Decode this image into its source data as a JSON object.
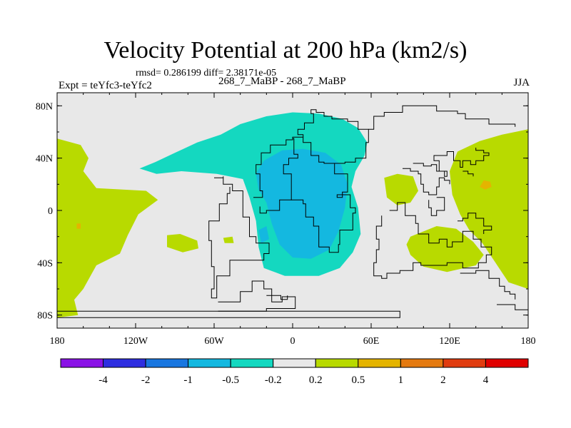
{
  "chart_data": {
    "type": "heatmap",
    "title": "Velocity Potential at 200 hPa (km2/s)",
    "stats": "rmsd= 0.286199 diff= 2.38171e-05",
    "experiment": "Expt = teYfc3-teYfc2",
    "runs": "268_7_MaBP - 268_7_MaBP",
    "season": "JJA",
    "xlim": [
      -180,
      180
    ],
    "ylim": [
      -90,
      90
    ],
    "x_ticks": [
      {
        "value": -180,
        "label": "180"
      },
      {
        "value": -120,
        "label": "120W"
      },
      {
        "value": -60,
        "label": "60W"
      },
      {
        "value": 0,
        "label": "0"
      },
      {
        "value": 60,
        "label": "60E"
      },
      {
        "value": 120,
        "label": "120E"
      },
      {
        "value": 180,
        "label": "180"
      }
    ],
    "y_ticks": [
      {
        "value": 80,
        "label": "80N"
      },
      {
        "value": 40,
        "label": "40N"
      },
      {
        "value": 0,
        "label": "0"
      },
      {
        "value": -40,
        "label": "40S"
      },
      {
        "value": -80,
        "label": "80S"
      }
    ],
    "colorbar": {
      "levels": [
        "-4",
        "-2",
        "-1",
        "-0.5",
        "-0.2",
        "0.2",
        "0.5",
        "1",
        "2",
        "4"
      ],
      "colors": [
        "#8a12e6",
        "#2e2ee0",
        "#1876e0",
        "#14b8e0",
        "#14d8c0",
        "#e8e8e8",
        "#b8da00",
        "#e4b400",
        "#e47a10",
        "#e03c10",
        "#e00000"
      ]
    },
    "regions": [
      {
        "label": "-0.2 to -0.5",
        "color": "#14d8c0",
        "polygon": [
          [
            -117,
            32
          ],
          [
            -105,
            37
          ],
          [
            -90,
            44
          ],
          [
            -73,
            52
          ],
          [
            -55,
            58
          ],
          [
            -40,
            66
          ],
          [
            -20,
            72
          ],
          [
            0,
            75
          ],
          [
            20,
            74
          ],
          [
            38,
            70
          ],
          [
            50,
            63
          ],
          [
            57,
            52
          ],
          [
            55,
            42
          ],
          [
            48,
            30
          ],
          [
            45,
            18
          ],
          [
            50,
            2
          ],
          [
            52,
            -18
          ],
          [
            46,
            -32
          ],
          [
            36,
            -44
          ],
          [
            20,
            -50
          ],
          [
            -6,
            -50
          ],
          [
            -22,
            -44
          ],
          [
            -26,
            -28
          ],
          [
            -28,
            -8
          ],
          [
            -33,
            10
          ],
          [
            -38,
            24
          ],
          [
            -58,
            28
          ],
          [
            -85,
            30
          ],
          [
            -104,
            28
          ]
        ]
      },
      {
        "label": "-0.5 to -1",
        "color": "#14b8e0",
        "polygon": [
          [
            -22,
            38
          ],
          [
            -8,
            46
          ],
          [
            8,
            47
          ],
          [
            25,
            44
          ],
          [
            37,
            35
          ],
          [
            42,
            20
          ],
          [
            40,
            2
          ],
          [
            35,
            -16
          ],
          [
            28,
            -30
          ],
          [
            14,
            -37
          ],
          [
            0,
            -36
          ],
          [
            -10,
            -26
          ],
          [
            -16,
            -10
          ],
          [
            -20,
            6
          ],
          [
            -26,
            16
          ],
          [
            -28,
            28
          ]
        ]
      },
      {
        "label": "-0.5 to -1",
        "color": "#14b8e0",
        "polygon": [
          [
            -26,
            -15
          ],
          [
            -24,
            -25
          ],
          [
            -18,
            -22
          ],
          [
            -20,
            -12
          ]
        ]
      },
      {
        "label": "0.2 to 0.5",
        "color": "#b8da00",
        "polygon": [
          [
            -180,
            55
          ],
          [
            -162,
            50
          ],
          [
            -156,
            40
          ],
          [
            -160,
            30
          ],
          [
            -150,
            17
          ],
          [
            -112,
            15
          ],
          [
            -103,
            8
          ],
          [
            -118,
            -3
          ],
          [
            -126,
            -19
          ],
          [
            -132,
            -33
          ],
          [
            -150,
            -42
          ],
          [
            -160,
            -60
          ],
          [
            -170,
            -72
          ],
          [
            -180,
            -74
          ]
        ]
      },
      {
        "label": "0.2 to 0.5",
        "color": "#b8da00",
        "polygon": [
          [
            -180,
            -58
          ],
          [
            -168,
            -64
          ],
          [
            -164,
            -80
          ],
          [
            -180,
            -82
          ]
        ]
      },
      {
        "label": "0.2 to 0.5",
        "color": "#b8da00",
        "polygon": [
          [
            180,
            62
          ],
          [
            160,
            58
          ],
          [
            143,
            53
          ],
          [
            126,
            45
          ],
          [
            120,
            30
          ],
          [
            122,
            12
          ],
          [
            128,
            -3
          ],
          [
            135,
            -15
          ],
          [
            145,
            -25
          ],
          [
            155,
            -40
          ],
          [
            165,
            -55
          ],
          [
            180,
            -60
          ]
        ]
      },
      {
        "label": "0.2 to 0.5",
        "color": "#b8da00",
        "polygon": [
          [
            90,
            -20
          ],
          [
            110,
            -12
          ],
          [
            125,
            -14
          ],
          [
            138,
            -24
          ],
          [
            146,
            -34
          ],
          [
            140,
            -42
          ],
          [
            118,
            -47
          ],
          [
            100,
            -43
          ],
          [
            90,
            -34
          ],
          [
            87,
            -26
          ]
        ]
      },
      {
        "label": "0.2 to 0.5",
        "color": "#b8da00",
        "polygon": [
          [
            70,
            25
          ],
          [
            80,
            28
          ],
          [
            92,
            26
          ],
          [
            96,
            15
          ],
          [
            90,
            6
          ],
          [
            80,
            4
          ],
          [
            72,
            10
          ]
        ]
      },
      {
        "label": "0.2 to 0.5",
        "color": "#b8da00",
        "polygon": [
          [
            -96,
            -19
          ],
          [
            -86,
            -18
          ],
          [
            -73,
            -23
          ],
          [
            -72,
            -29
          ],
          [
            -84,
            -32
          ],
          [
            -96,
            -28
          ]
        ]
      },
      {
        "label": "0.2 to 0.5",
        "color": "#b8da00",
        "polygon": [
          [
            -53,
            -21
          ],
          [
            -46,
            -20
          ],
          [
            -45,
            -25
          ],
          [
            -52,
            -25
          ]
        ]
      },
      {
        "label": "0.5 to 1",
        "color": "#e4b400",
        "polygon": [
          [
            146,
            23
          ],
          [
            151,
            22
          ],
          [
            152,
            18
          ],
          [
            147,
            16
          ],
          [
            143,
            18
          ]
        ]
      },
      {
        "label": "0.5 to 1",
        "color": "#e4b400",
        "polygon": [
          [
            -165,
            -10
          ],
          [
            -162,
            -10
          ],
          [
            -162,
            -14
          ],
          [
            -165,
            -14
          ]
        ]
      }
    ],
    "boundaries": [
      [
        [
          -180,
          -77
        ],
        [
          82,
          -77
        ],
        [
          82,
          -82
        ],
        [
          -180,
          -82
        ]
      ],
      [
        [
          -57,
          -70
        ],
        [
          -46,
          -70
        ],
        [
          -40,
          -62
        ],
        [
          -34,
          -62
        ],
        [
          -31,
          -54
        ],
        [
          -22,
          -60
        ],
        [
          -16,
          -70
        ],
        [
          -8,
          -66
        ],
        [
          2,
          -75
        ],
        [
          -20,
          -77
        ],
        [
          -57,
          -77
        ]
      ],
      [
        [
          -20,
          -65
        ],
        [
          -9,
          -68
        ],
        [
          -4,
          -65
        ]
      ],
      [
        [
          -60,
          25
        ],
        [
          -53,
          26
        ],
        [
          -53,
          20
        ],
        [
          -46,
          15
        ],
        [
          -38,
          -5
        ],
        [
          -33,
          -20
        ],
        [
          -28,
          -25
        ],
        [
          -18,
          -33
        ],
        [
          -22,
          -38
        ],
        [
          -48,
          -50
        ],
        [
          -58,
          -67
        ],
        [
          -62,
          -60
        ],
        [
          -60,
          -43
        ],
        [
          -62,
          -23
        ],
        [
          -64,
          -8
        ],
        [
          -56,
          5
        ],
        [
          -50,
          13
        ],
        [
          -48,
          18
        ]
      ],
      [
        [
          -30,
          10
        ],
        [
          -23,
          15
        ],
        [
          -25,
          28
        ],
        [
          -28,
          35
        ],
        [
          -24,
          44
        ],
        [
          -17,
          50
        ],
        [
          -5,
          54
        ],
        [
          0,
          55
        ],
        [
          1,
          43
        ],
        [
          4,
          40
        ],
        [
          -3,
          35
        ],
        [
          -7,
          28
        ],
        [
          -1,
          8
        ],
        [
          -10,
          0
        ],
        [
          -20,
          -2
        ],
        [
          -25,
          3
        ]
      ],
      [
        [
          -1,
          8
        ],
        [
          8,
          5
        ],
        [
          10,
          -5
        ],
        [
          16,
          -12
        ],
        [
          20,
          -28
        ],
        [
          28,
          -32
        ],
        [
          35,
          -26
        ],
        [
          36,
          -15
        ],
        [
          46,
          -2
        ],
        [
          48,
          2
        ],
        [
          44,
          12
        ],
        [
          34,
          10
        ],
        [
          38,
          14
        ],
        [
          42,
          28
        ],
        [
          32,
          36
        ],
        [
          24,
          37
        ],
        [
          20,
          42
        ],
        [
          14,
          47
        ],
        [
          14,
          52
        ],
        [
          8,
          56
        ],
        [
          0,
          55
        ]
      ],
      [
        [
          32,
          36
        ],
        [
          40,
          37
        ],
        [
          48,
          40
        ],
        [
          56,
          52
        ],
        [
          58,
          62
        ],
        [
          50,
          68
        ],
        [
          42,
          70
        ],
        [
          30,
          72
        ],
        [
          24,
          75
        ],
        [
          18,
          77
        ],
        [
          14,
          74
        ],
        [
          16,
          67
        ],
        [
          9,
          62
        ],
        [
          4,
          58
        ],
        [
          8,
          56
        ]
      ],
      [
        [
          58,
          62
        ],
        [
          62,
          72
        ],
        [
          70,
          75
        ],
        [
          84,
          75
        ],
        [
          84,
          80
        ],
        [
          100,
          80
        ],
        [
          110,
          76
        ],
        [
          126,
          74
        ],
        [
          132,
          70
        ],
        [
          140,
          70
        ],
        [
          150,
          66
        ],
        [
          164,
          66
        ],
        [
          170,
          64
        ]
      ],
      [
        [
          84,
          32
        ],
        [
          90,
          30
        ],
        [
          96,
          28
        ],
        [
          98,
          20
        ],
        [
          100,
          14
        ],
        [
          104,
          12
        ],
        [
          110,
          18
        ],
        [
          112,
          25
        ],
        [
          116,
          23
        ],
        [
          120,
          20
        ]
      ],
      [
        [
          92,
          36
        ],
        [
          100,
          34
        ],
        [
          106,
          35
        ],
        [
          110,
          30
        ],
        [
          116,
          26
        ],
        [
          118,
          30
        ],
        [
          112,
          38
        ],
        [
          108,
          42
        ],
        [
          118,
          45
        ],
        [
          123,
          38
        ],
        [
          128,
          33
        ],
        [
          130,
          38
        ],
        [
          136,
          35
        ],
        [
          140,
          38
        ],
        [
          146,
          42
        ],
        [
          150,
          44
        ],
        [
          146,
          46
        ],
        [
          140,
          48
        ]
      ],
      [
        [
          110,
          10
        ],
        [
          116,
          0
        ],
        [
          110,
          -4
        ],
        [
          106,
          2
        ],
        [
          104,
          8
        ]
      ],
      [
        [
          126,
          -8
        ],
        [
          130,
          -6
        ],
        [
          134,
          -2
        ],
        [
          140,
          -6
        ],
        [
          146,
          -12
        ],
        [
          152,
          -15
        ],
        [
          146,
          -18
        ]
      ],
      [
        [
          130,
          30
        ],
        [
          134,
          28
        ],
        [
          138,
          26
        ]
      ],
      [
        [
          74,
          0
        ],
        [
          80,
          6
        ],
        [
          86,
          -4
        ],
        [
          94,
          -10
        ],
        [
          96,
          -18
        ],
        [
          104,
          -25
        ],
        [
          112,
          -22
        ],
        [
          118,
          -28
        ],
        [
          122,
          -24
        ],
        [
          130,
          -16
        ],
        [
          138,
          -22
        ],
        [
          144,
          -28
        ],
        [
          152,
          -34
        ],
        [
          148,
          -40
        ],
        [
          142,
          -44
        ],
        [
          130,
          -40
        ],
        [
          118,
          -42
        ],
        [
          108,
          -42
        ],
        [
          98,
          -40
        ],
        [
          92,
          -46
        ],
        [
          82,
          -48
        ],
        [
          72,
          -52
        ],
        [
          68,
          -50
        ],
        [
          62,
          -40
        ],
        [
          64,
          -30
        ],
        [
          66,
          -22
        ],
        [
          64,
          -12
        ],
        [
          68,
          -4
        ]
      ],
      [
        [
          128,
          -48
        ],
        [
          140,
          -46
        ],
        [
          150,
          -52
        ],
        [
          158,
          -58
        ],
        [
          162,
          -62
        ],
        [
          166,
          -64
        ],
        [
          170,
          -68
        ]
      ],
      [
        [
          156,
          -72
        ],
        [
          164,
          -72
        ],
        [
          170,
          -76
        ],
        [
          180,
          -80
        ]
      ]
    ]
  }
}
